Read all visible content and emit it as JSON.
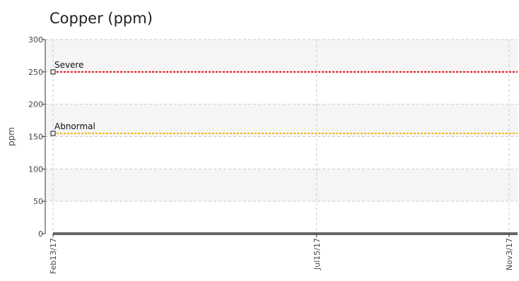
{
  "chart_data": {
    "type": "line",
    "title": "Copper (ppm)",
    "xlabel": "",
    "ylabel": "ppm",
    "ylim": [
      0,
      300
    ],
    "yticks": [
      0,
      50,
      100,
      150,
      200,
      250,
      300
    ],
    "x_tick_labels": [
      "Feb13/17",
      "Jul15/17",
      "Nov3/17"
    ],
    "x_ticks": [
      "2017-02-13",
      "2017-07-15",
      "2017-11-03"
    ],
    "xlim": [
      "2017-02-13",
      "2017-11-03"
    ],
    "grid": true,
    "thresholds": [
      {
        "name": "Severe",
        "value": 250,
        "color": "#ee1111"
      },
      {
        "name": "Abnormal",
        "value": 155,
        "color": "#f2b600"
      }
    ],
    "series": [],
    "colors": {
      "band": "#f5f5f5",
      "grid": "#cccccc",
      "axis": "#333333",
      "baseline": "#666666"
    }
  }
}
